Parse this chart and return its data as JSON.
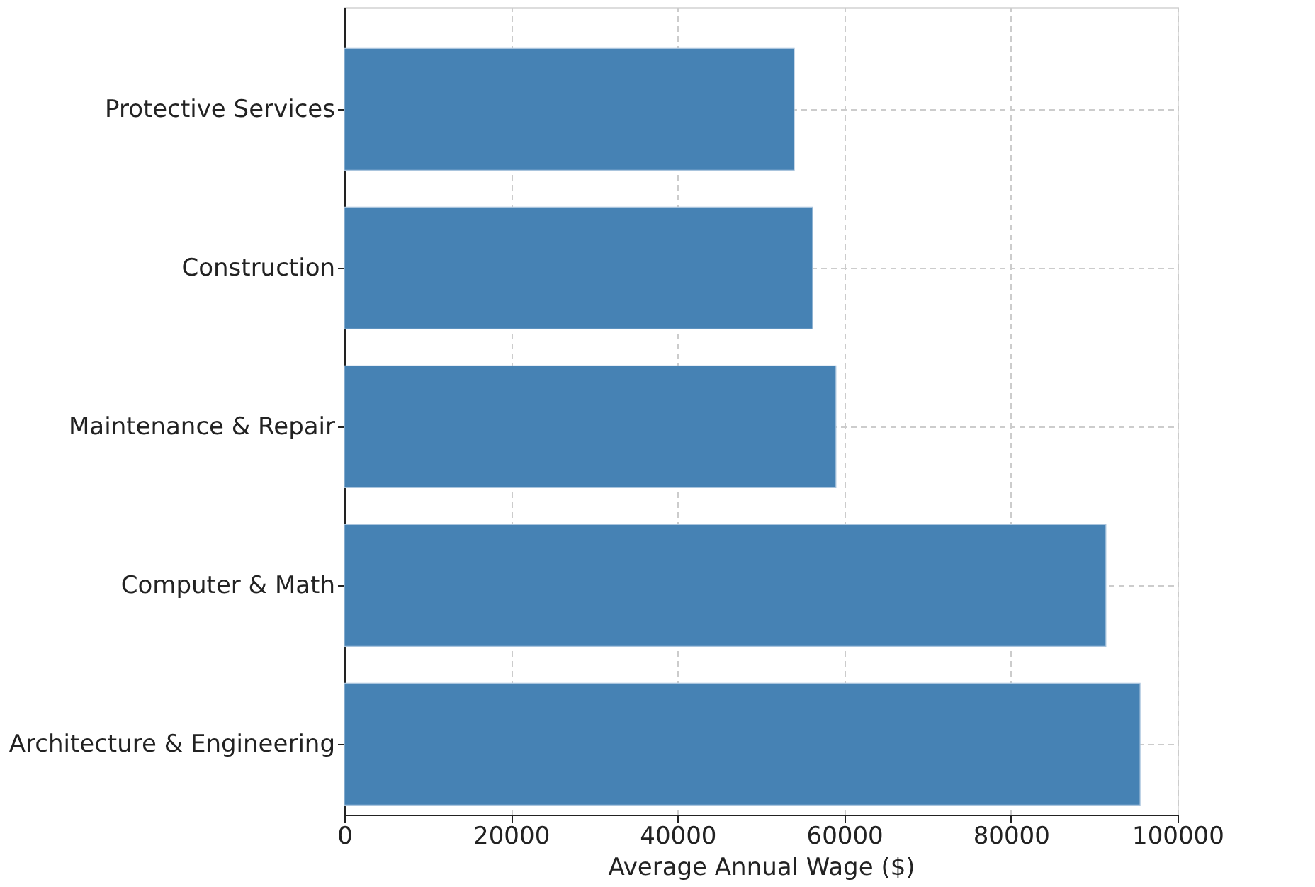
{
  "chart_data": {
    "type": "bar",
    "orientation": "horizontal",
    "categories": [
      "Protective Services",
      "Construction",
      "Maintenance & Repair",
      "Computer & Math",
      "Architecture & Engineering"
    ],
    "values": [
      54000,
      56200,
      59000,
      91400,
      95500
    ],
    "color": "#4682b4",
    "xlabel": "Average Annual Wage ($)",
    "xlim": [
      0,
      100000
    ],
    "xticks": [
      0,
      20000,
      40000,
      60000,
      80000,
      100000
    ],
    "grid": true
  }
}
